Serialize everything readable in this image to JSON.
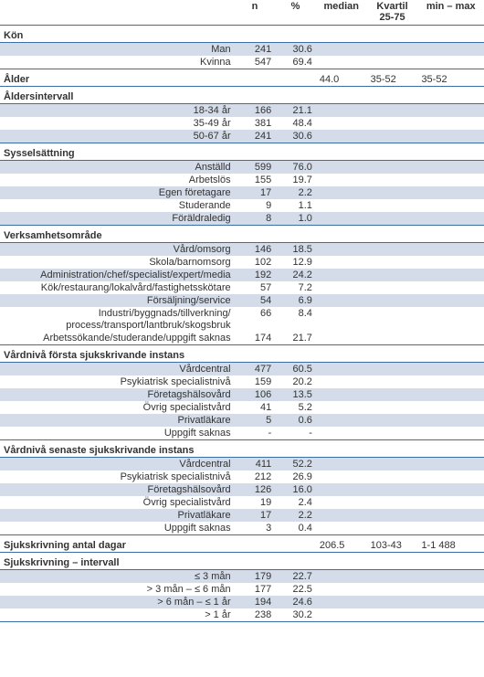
{
  "columns": {
    "n": "n",
    "pct": "%",
    "median": "median",
    "kvartil": "Kvartil 25-75",
    "minmax": "min – max"
  },
  "colors": {
    "stripe": "#d3dce8",
    "rule": "#3b6ea5",
    "text": "#333",
    "bg": "#ffffff"
  },
  "sections": [
    {
      "title": "Kön",
      "rows": [
        {
          "label": "Man",
          "n": "241",
          "pct": "30.6",
          "stripe": true
        },
        {
          "label": "Kvinna",
          "n": "547",
          "pct": "69.4"
        }
      ]
    },
    {
      "title": "Ålder",
      "title_row_values": {
        "median": "44.0",
        "kvartil": "35-52",
        "minmax": "35-52"
      },
      "rows": []
    },
    {
      "title": "Åldersintervall",
      "rows": [
        {
          "label": "18-34 år",
          "n": "166",
          "pct": "21.1",
          "stripe": true
        },
        {
          "label": "35-49 år",
          "n": "381",
          "pct": "48.4"
        },
        {
          "label": "50-67 år",
          "n": "241",
          "pct": "30.6",
          "stripe": true
        }
      ]
    },
    {
      "title": "Sysselsättning",
      "rows": [
        {
          "label": "Anställd",
          "n": "599",
          "pct": "76.0",
          "stripe": true
        },
        {
          "label": "Arbetslös",
          "n": "155",
          "pct": "19.7"
        },
        {
          "label": "Egen företagare",
          "n": "17",
          "pct": "2.2",
          "stripe": true
        },
        {
          "label": "Studerande",
          "n": "9",
          "pct": "1.1"
        },
        {
          "label": "Föräldraledig",
          "n": "8",
          "pct": "1.0",
          "stripe": true
        }
      ]
    },
    {
      "title": "Verksamhetsområde",
      "rows": [
        {
          "label": "Vård/omsorg",
          "n": "146",
          "pct": "18.5",
          "stripe": true
        },
        {
          "label": "Skola/barnomsorg",
          "n": "102",
          "pct": "12.9"
        },
        {
          "label": "Administration/chef/specialist/expert/media",
          "n": "192",
          "pct": "24.2",
          "stripe": true
        },
        {
          "label": "Kök/restaurang/lokalvård/fastighetsskötare",
          "n": "57",
          "pct": "7.2"
        },
        {
          "label": "Försäljning/service",
          "n": "54",
          "pct": "6.9",
          "stripe": true
        },
        {
          "label": "Industri/byggnads/tillverkning/ process/transport/lantbruk/skogsbruk",
          "n": "66",
          "pct": "8.4",
          "wrap": true
        },
        {
          "label": "Arbetssökande/studerande/uppgift saknas",
          "n": "174",
          "pct": "21.7"
        }
      ]
    },
    {
      "title": "Vårdnivå första sjukskrivande instans",
      "rows": [
        {
          "label": "Vårdcentral",
          "n": "477",
          "pct": "60.5",
          "stripe": true
        },
        {
          "label": "Psykiatrisk specialistnivå",
          "n": "159",
          "pct": "20.2"
        },
        {
          "label": "Företagshälsovård",
          "n": "106",
          "pct": "13.5",
          "stripe": true
        },
        {
          "label": "Övrig specialistvård",
          "n": "41",
          "pct": "5.2"
        },
        {
          "label": "Privatläkare",
          "n": "5",
          "pct": "0.6",
          "stripe": true
        },
        {
          "label": "Uppgift saknas",
          "n": "-",
          "pct": "-"
        }
      ]
    },
    {
      "title": "Vårdnivå senaste sjukskrivande instans",
      "rows": [
        {
          "label": "Vårdcentral",
          "n": "411",
          "pct": "52.2",
          "stripe": true
        },
        {
          "label": "Psykiatrisk specialistnivå",
          "n": "212",
          "pct": "26.9"
        },
        {
          "label": "Företagshälsovård",
          "n": "126",
          "pct": "16.0",
          "stripe": true
        },
        {
          "label": "Övrig specialistvård",
          "n": "19",
          "pct": "2.4"
        },
        {
          "label": "Privatläkare",
          "n": "17",
          "pct": "2.2",
          "stripe": true
        },
        {
          "label": "Uppgift saknas",
          "n": "3",
          "pct": "0.4"
        }
      ]
    },
    {
      "title": "Sjukskrivning antal dagar",
      "title_row_values": {
        "median": "206.5",
        "kvartil": "103-43",
        "minmax": "1-1 488"
      },
      "rows": []
    },
    {
      "title": "Sjukskrivning – intervall",
      "rows": [
        {
          "label": "≤ 3 mån",
          "n": "179",
          "pct": "22.7",
          "stripe": true
        },
        {
          "label": "> 3 mån – ≤ 6 mån",
          "n": "177",
          "pct": "22.5"
        },
        {
          "label": "> 6 mån – ≤ 1 år",
          "n": "194",
          "pct": "24.6",
          "stripe": true
        },
        {
          "label": "> 1 år",
          "n": "238",
          "pct": "30.2"
        }
      ]
    }
  ]
}
